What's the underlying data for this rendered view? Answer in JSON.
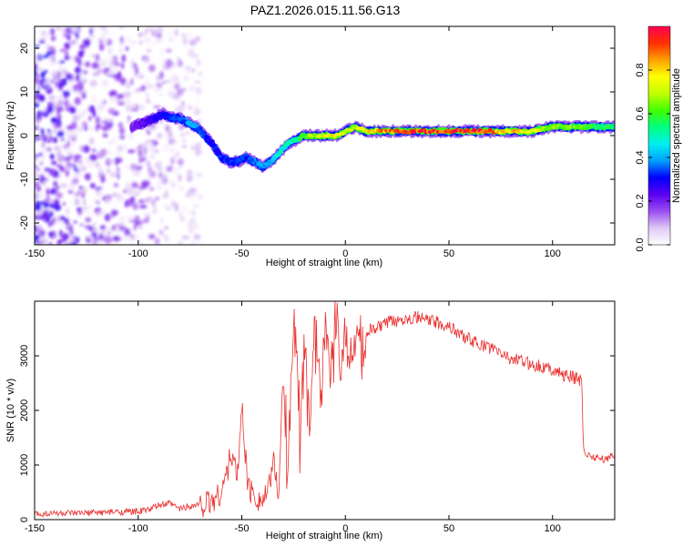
{
  "figure": {
    "title": "PAZ1.2026.015.11.56.G13"
  },
  "chart_data": [
    {
      "type": "heatmap",
      "xlabel": "Height of straight line (km)",
      "ylabel": "Frequency (Hz)",
      "xlim": [
        -150,
        130
      ],
      "ylim": [
        -25,
        25
      ],
      "xticks": [
        "-150",
        "-100",
        "-50",
        "0",
        "50",
        "100"
      ],
      "yticks": [
        "-20",
        "-10",
        "0",
        "10",
        "20"
      ],
      "colorbar": {
        "label": "Normalized spectral amplitude",
        "range": [
          0,
          1
        ],
        "ticks": [
          "0.0",
          "0.2",
          "0.4",
          "0.6",
          "0.8"
        ],
        "colors": [
          "#ffffff",
          "#e0c8f5",
          "#9a4df0",
          "#5b00f0",
          "#0000ff",
          "#00a0ff",
          "#00f0f0",
          "#00ff80",
          "#40ff00",
          "#c0ff00",
          "#ffff00",
          "#ffa000",
          "#ff3000",
          "#ff0050"
        ]
      },
      "ridge": {
        "x": [
          -103,
          -97,
          -92,
          -88,
          -84,
          -80,
          -76,
          -72,
          -68,
          -64,
          -60,
          -56,
          -52,
          -48,
          -44,
          -40,
          -36,
          -32,
          -28,
          -24,
          -20,
          -16,
          -12,
          -8,
          -4,
          0,
          5,
          10,
          15,
          20,
          30,
          40,
          50,
          60,
          70,
          80,
          90,
          100,
          110,
          120,
          130
        ],
        "freq": [
          2,
          3,
          4,
          5,
          4,
          4,
          3,
          2,
          0,
          -2,
          -5,
          -6,
          -6,
          -5,
          -6,
          -7,
          -6,
          -4,
          -2,
          -1,
          0,
          0,
          0,
          0,
          0,
          1,
          2,
          1,
          1,
          1,
          1,
          1,
          1,
          1,
          1,
          1,
          1,
          2,
          2,
          2,
          2
        ],
        "amplitude": [
          0.2,
          0.25,
          0.3,
          0.3,
          0.35,
          0.35,
          0.4,
          0.4,
          0.35,
          0.3,
          0.35,
          0.35,
          0.35,
          0.35,
          0.4,
          0.4,
          0.45,
          0.5,
          0.5,
          0.55,
          0.6,
          0.7,
          0.75,
          0.8,
          0.8,
          0.8,
          0.75,
          0.8,
          0.85,
          0.9,
          0.95,
          1.0,
          1.0,
          1.0,
          0.95,
          0.85,
          0.75,
          0.7,
          0.65,
          0.6,
          0.55
        ]
      },
      "noise_region_x": [
        -150,
        -70
      ]
    },
    {
      "type": "line",
      "xlabel": "Height of straight line (km)",
      "ylabel": "SNR (10 * v/v)",
      "xlim": [
        -150,
        130
      ],
      "ylim": [
        0,
        4000
      ],
      "xticks": [
        "-150",
        "-100",
        "-50",
        "0",
        "50",
        "100"
      ],
      "yticks": [
        "0",
        "1000",
        "2000",
        "3000"
      ],
      "line_color": "#e8302e",
      "x": [
        -150,
        -140,
        -130,
        -120,
        -110,
        -100,
        -95,
        -90,
        -85,
        -80,
        -75,
        -70,
        -65,
        -60,
        -57,
        -55,
        -52,
        -50,
        -47,
        -45,
        -42,
        -40,
        -37,
        -35,
        -32,
        -30,
        -28,
        -25,
        -22,
        -20,
        -17,
        -15,
        -12,
        -10,
        -7,
        -5,
        -2,
        0,
        3,
        5,
        8,
        10,
        15,
        20,
        25,
        30,
        35,
        40,
        45,
        50,
        55,
        60,
        65,
        70,
        75,
        80,
        85,
        90,
        95,
        100,
        105,
        110,
        114,
        115,
        116,
        120,
        125,
        130
      ],
      "y": [
        100,
        120,
        110,
        130,
        140,
        150,
        180,
        260,
        300,
        200,
        250,
        280,
        320,
        500,
        900,
        1200,
        800,
        2100,
        600,
        500,
        400,
        350,
        500,
        1100,
        500,
        2800,
        800,
        3800,
        1500,
        3200,
        2000,
        3500,
        2400,
        3400,
        2500,
        3600,
        2800,
        3300,
        2900,
        3600,
        3100,
        3450,
        3500,
        3600,
        3650,
        3700,
        3700,
        3650,
        3600,
        3550,
        3400,
        3300,
        3200,
        3150,
        3050,
        2950,
        2900,
        2850,
        2800,
        2750,
        2650,
        2600,
        2550,
        1300,
        1200,
        1150,
        1100,
        1200
      ]
    }
  ]
}
